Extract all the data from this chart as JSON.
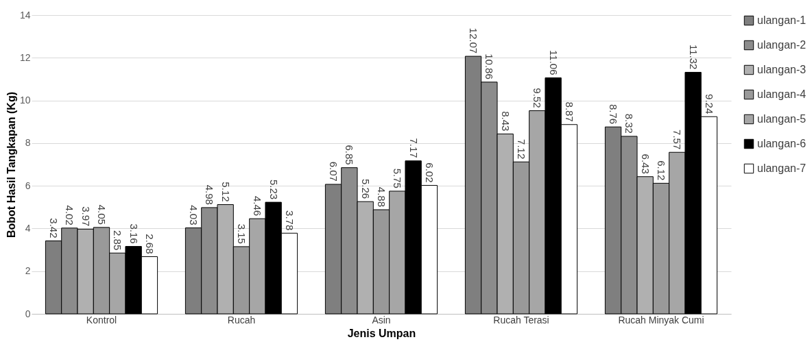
{
  "chart_data": {
    "type": "bar",
    "xlabel": "Jenis Umpan",
    "ylabel": "Bobot Hasil Tangkapan (Kg)",
    "categories": [
      "Kontrol",
      "Rucah",
      "Asin",
      "Rucah Terasi",
      "Rucah Minyak Cumi"
    ],
    "series": [
      {
        "name": "ulangan-1",
        "color": "#7f7f7f",
        "values": [
          3.42,
          4.03,
          6.07,
          12.07,
          8.76
        ]
      },
      {
        "name": "ulangan-2",
        "color": "#8c8c8c",
        "values": [
          4.02,
          4.98,
          6.85,
          10.86,
          8.32
        ]
      },
      {
        "name": "ulangan-3",
        "color": "#b0b0b0",
        "values": [
          3.97,
          5.12,
          5.26,
          8.43,
          6.43
        ]
      },
      {
        "name": "ulangan-4",
        "color": "#999999",
        "values": [
          4.05,
          3.15,
          4.88,
          7.12,
          6.12
        ]
      },
      {
        "name": "ulangan-5",
        "color": "#a6a6a6",
        "values": [
          2.85,
          4.46,
          5.75,
          9.52,
          7.57
        ]
      },
      {
        "name": "ulangan-6",
        "color": "#000000",
        "values": [
          3.16,
          5.23,
          7.17,
          11.06,
          11.32
        ]
      },
      {
        "name": "ulangan-7",
        "color": "#ffffff",
        "values": [
          2.68,
          3.78,
          6.02,
          8.87,
          9.24
        ]
      }
    ],
    "ylim": [
      0,
      14
    ],
    "yticks": [
      0,
      2,
      4,
      6,
      8,
      10,
      12,
      14
    ],
    "grid": "y",
    "legend": "right",
    "data_labels": true
  }
}
